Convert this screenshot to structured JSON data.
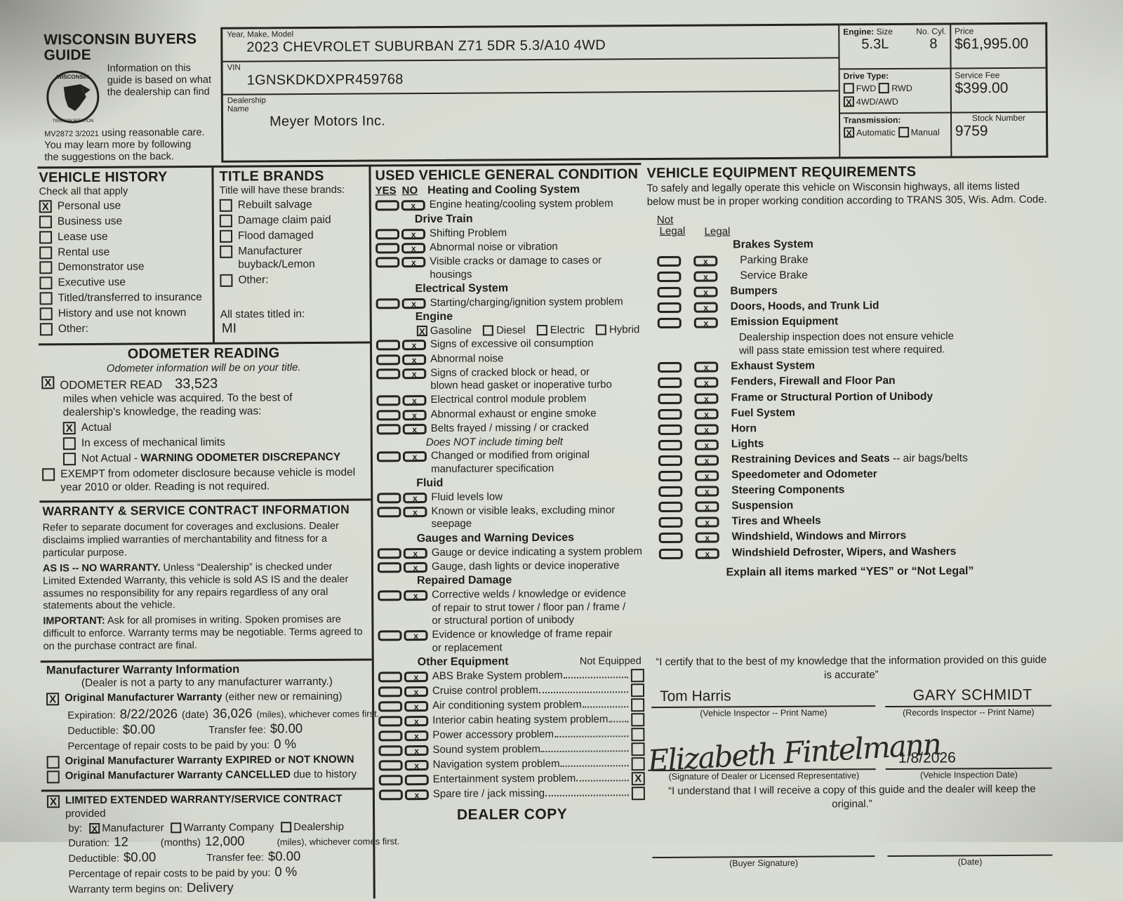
{
  "accent_colors": {
    "paper": "#d7dacf",
    "ink": "#1d1e1a"
  },
  "guide": {
    "title": "WISCONSIN BUYERS GUIDE",
    "intro_wrap": "Information on this guide is based on what the dealership can find",
    "form_number": "MV2872  3/2021",
    "intro_rest": "using reasonable care.",
    "intro_line2": "You may learn more by following",
    "intro_line3": "the suggestions on the back.",
    "logo_name": "wisconsin-dot-seal"
  },
  "header": {
    "ymm_label": "Year, Make, Model",
    "ymm_value": "2023   CHEVROLET   SUBURBAN Z71 5DR 5.3/A10 4WD",
    "vin_label": "VIN",
    "vin_value": "1GNSKDKDXPR459768",
    "dealership_label": "Dealership\nName",
    "dealership_value": "Meyer Motors Inc.",
    "engine_label": "Engine:",
    "engine_size_label": "Size",
    "no_cyl_label": "No. Cyl.",
    "engine_size": "5.3L",
    "no_cyl": "8",
    "price_label": "Price",
    "price": "$61,995.00",
    "drive_type_label": "Drive Type:",
    "drive_options": [
      {
        "label": "FWD",
        "checked": false
      },
      {
        "label": "RWD",
        "checked": false
      },
      {
        "label": "4WD/AWD",
        "checked": true
      }
    ],
    "service_fee_label": "Service Fee",
    "service_fee": "$399.00",
    "transmission_label": "Transmission:",
    "transmission_options": [
      {
        "label": "Automatic",
        "checked": true
      },
      {
        "label": "Manual",
        "checked": false
      }
    ],
    "stock_label": "Stock Number",
    "stock": "9759"
  },
  "vehicle_history": {
    "title": "VEHICLE HISTORY",
    "subtitle": "Check all that apply",
    "items": [
      {
        "label": "Personal use",
        "checked": true
      },
      {
        "label": "Business use",
        "checked": false
      },
      {
        "label": "Lease use",
        "checked": false
      },
      {
        "label": "Rental use",
        "checked": false
      },
      {
        "label": "Demonstrator use",
        "checked": false
      },
      {
        "label": "Executive use",
        "checked": false
      },
      {
        "label": "Titled/transferred to insurance",
        "checked": false
      },
      {
        "label": "History and use not known",
        "checked": false
      },
      {
        "label": "Other:",
        "checked": false
      }
    ]
  },
  "title_brands": {
    "title": "TITLE BRANDS",
    "subtitle": "Title will have these brands:",
    "items": [
      {
        "label": "Rebuilt salvage",
        "checked": false
      },
      {
        "label": "Damage claim paid",
        "checked": false
      },
      {
        "label": "Flood damaged",
        "checked": false
      },
      {
        "label": "Manufacturer buyback/Lemon",
        "checked": false
      },
      {
        "label": "Other:",
        "checked": false
      }
    ],
    "titled_label": "All states titled in:",
    "titled_value": "MI"
  },
  "odometer": {
    "title": "ODOMETER READING",
    "subtitle": "Odometer information will be on your title.",
    "read": {
      "checked": true,
      "label": "ODOMETER READ",
      "value": "33,523"
    },
    "desc": "miles when vehicle was acquired.  To the best of\ndealership's knowledge, the reading was:",
    "options": [
      {
        "label": "Actual",
        "checked": true
      },
      {
        "label": "In excess of mechanical limits",
        "checked": false
      },
      {
        "label": "Not Actual - ",
        "bold": "WARNING ODOMETER DISCREPANCY",
        "checked": false
      }
    ],
    "exempt": {
      "checked": false,
      "label": "EXEMPT from odometer disclosure because vehicle is model\nyear 2010 or older. Reading is not required."
    }
  },
  "warranty_info": {
    "title": "WARRANTY & SERVICE CONTRACT INFORMATION",
    "p1": "Refer to separate document for coverages and exclusions. Dealer disclaims implied warranties of merchantability and fitness for a particular purpose.",
    "p2_bold": "AS IS -- NO WARRANTY.",
    "p2_rest": " Unless “Dealership” is checked under Limited Extended Warranty, this vehicle is sold AS IS and the dealer assumes no responsibility for any repairs regardless of any oral statements about the vehicle.",
    "p3_bold": "IMPORTANT:",
    "p3_rest": " Ask for all promises in writing.  Spoken promises are difficult to enforce.  Warranty terms may be negotiable.  Terms agreed to on the purchase contract are final."
  },
  "manufacturer_warranty": {
    "title": "Manufacturer Warranty Information",
    "subtitle": "(Dealer is not a party to any manufacturer warranty.)",
    "orig": {
      "checked": true,
      "bold": "Original Manufacturer Warranty",
      "rest": " (either new or remaining)"
    },
    "expiration_label": "Expiration:",
    "expiration": "8/22/2026",
    "date_label": "(date)",
    "miles": "36,026",
    "miles_label": "(miles), whichever comes first.",
    "deductible_label": "Deductible:",
    "deductible": "$0.00",
    "transfer_label": "Transfer fee:",
    "transfer": "$0.00",
    "pct_label": "Percentage of repair costs to be paid by you:",
    "pct": "0 %",
    "expired": {
      "checked": false,
      "bold": "Original Manufacturer Warranty EXPIRED or NOT KNOWN",
      "rest": ""
    },
    "cancelled": {
      "checked": false,
      "bold": "Original Manufacturer Warranty CANCELLED",
      "rest": " due to history"
    }
  },
  "extended_warranty": {
    "checked": true,
    "title_bold": "LIMITED EXTENDED WARRANTY/SERVICE CONTRACT",
    "title_rest": " provided",
    "by_label": "by:",
    "providers": [
      {
        "label": "Manufacturer",
        "checked": true
      },
      {
        "label": "Warranty Company",
        "checked": false
      },
      {
        "label": "Dealership",
        "checked": false
      }
    ],
    "duration_label": "Duration:",
    "duration": "12",
    "months_label": "(months)",
    "miles": "12,000",
    "miles_label": "(miles), whichever comes first.",
    "deductible_label": "Deductible:",
    "deductible": "$0.00",
    "transfer_label": "Transfer fee:",
    "transfer": "$0.00",
    "pct_label": "Percentage of repair costs to be paid by you:",
    "pct": "0 %",
    "begins_label": "Warranty term begins on:",
    "begins": "Delivery"
  },
  "condition": {
    "title": "USED VEHICLE GENERAL CONDITION",
    "yes_label": "YES",
    "no_label": "NO",
    "first_header": "Heating and Cooling System",
    "rows": [
      {
        "l": "Engine heating/cooling system problem",
        "no": true
      },
      {
        "h": "Drive Train"
      },
      {
        "l": "Shifting Problem",
        "no": true
      },
      {
        "l": "Abnormal noise or vibration",
        "no": true
      },
      {
        "l": "Visible cracks or damage to cases or housings",
        "no": true
      },
      {
        "h": "Electrical System"
      },
      {
        "l": "Starting/charging/ignition system problem",
        "no": true
      },
      {
        "h": "Engine"
      },
      {
        "fuel": [
          {
            "label": "Gasoline",
            "checked": true
          },
          {
            "label": "Diesel",
            "checked": false
          },
          {
            "label": "Electric",
            "checked": false
          },
          {
            "label": "Hybrid",
            "checked": false
          }
        ]
      },
      {
        "l": "Signs of excessive oil consumption",
        "no": true
      },
      {
        "l": "Abnormal noise",
        "no": true
      },
      {
        "l": "Signs of cracked block or head, or\nblown head gasket or inoperative turbo",
        "no": true
      },
      {
        "l": "Electrical control module problem",
        "no": true
      },
      {
        "l": "Abnormal exhaust or engine smoke",
        "no": true
      },
      {
        "l": "Belts frayed / missing / or cracked",
        "no": true
      },
      {
        "note": "Does NOT include timing belt"
      },
      {
        "l": "Changed or modified from original\nmanufacturer specification",
        "no": true
      },
      {
        "h": "Fluid"
      },
      {
        "l": "Fluid levels low",
        "no": true
      },
      {
        "l": "Known or visible leaks, excluding minor seepage",
        "no": true
      },
      {
        "h": "Gauges and Warning Devices"
      },
      {
        "l": "Gauge or device indicating a system problem",
        "no": true
      },
      {
        "l": "Gauge, dash lights or device inoperative",
        "no": true
      },
      {
        "h": "Repaired Damage"
      },
      {
        "l": "Corrective welds / knowledge or evidence\nof repair to strut tower / floor pan / frame /\nor structural portion of unibody",
        "no": true
      },
      {
        "l": "Evidence or knowledge of frame repair\nor replacement",
        "no": true
      },
      {
        "h": "Other Equipment",
        "right": "Not Equipped"
      },
      {
        "l": "ABS Brake System problem",
        "no": true,
        "dots": true,
        "ne": false
      },
      {
        "l": "Cruise control problem",
        "no": true,
        "dots": true,
        "ne": false
      },
      {
        "l": "Air conditioning system problem",
        "no": true,
        "dots": true,
        "ne": false
      },
      {
        "l": "Interior cabin heating system problem",
        "no": true,
        "dots": true,
        "ne": false
      },
      {
        "l": "Power accessory problem",
        "no": true,
        "dots": true,
        "ne": false
      },
      {
        "l": "Sound system problem",
        "no": true,
        "dots": true,
        "ne": false
      },
      {
        "l": "Navigation system problem",
        "no": true,
        "dots": true,
        "ne": false
      },
      {
        "l": "Entertainment system problem",
        "no": false,
        "dots": true,
        "ne": true
      },
      {
        "l": "Spare tire / jack missing",
        "no": true,
        "dots": true,
        "ne": false
      }
    ],
    "dealer_copy": "DEALER COPY"
  },
  "equipment": {
    "title": "VEHICLE EQUIPMENT REQUIREMENTS",
    "intro": "To safely and legally operate this vehicle on Wisconsin highways, all items listed below must be in proper working condition according to TRANS 305, Wis. Adm. Code.",
    "not_legal_top": "Not",
    "not_legal_label": "Legal",
    "legal_label": "Legal",
    "rows": [
      {
        "h": "Brakes System"
      },
      {
        "l": "Parking Brake",
        "legal": true,
        "plain": true
      },
      {
        "l": "Service Brake",
        "legal": true,
        "plain": true
      },
      {
        "l": "Bumpers",
        "legal": true
      },
      {
        "l": "Doors, Hoods, and Trunk Lid",
        "legal": true
      },
      {
        "l": "Emission Equipment",
        "legal": true
      },
      {
        "note": "Dealership inspection does not ensure vehicle\nwill pass state emission test where required."
      },
      {
        "l": "Exhaust System",
        "legal": true
      },
      {
        "l": "Fenders, Firewall and Floor Pan",
        "legal": true
      },
      {
        "l": "Frame or Structural Portion of Unibody",
        "legal": true
      },
      {
        "l": "Fuel System",
        "legal": true
      },
      {
        "l": "Horn",
        "legal": true
      },
      {
        "l": "Lights",
        "legal": true
      },
      {
        "l": "Restraining Devices and Seats",
        "sfx": " -- air bags/belts",
        "legal": true
      },
      {
        "l": "Speedometer and Odometer",
        "legal": true
      },
      {
        "l": "Steering Components",
        "legal": true
      },
      {
        "l": "Suspension",
        "legal": true
      },
      {
        "l": "Tires and Wheels",
        "legal": true
      },
      {
        "l": "Windshield, Windows and Mirrors",
        "legal": true
      },
      {
        "l": "Windshield Defroster, Wipers, and Washers",
        "legal": true
      }
    ],
    "explain": "Explain all items marked “YES” or “Not Legal”"
  },
  "certification": {
    "certify_text": "“I certify that to the best of my knowledge that the information provided on this guide is accurate”",
    "vehicle_inspector_name": "Tom Harris",
    "vehicle_inspector_label": "(Vehicle Inspector -- Print Name)",
    "records_inspector_name": "GARY SCHMIDT",
    "records_inspector_label": "(Records Inspector -- Print Name)",
    "signature_name": "Elizabeth Fintelmann",
    "signature_label": "(Signature of Dealer or Licensed Representative)",
    "inspection_date": "1/8/2026",
    "inspection_date_label": "(Vehicle Inspection Date)",
    "understand_text": "“I understand that I will receive a copy of this guide and the dealer will keep the original.”",
    "buyer_signature_label": "(Buyer Signature)",
    "date_label": "(Date)"
  }
}
